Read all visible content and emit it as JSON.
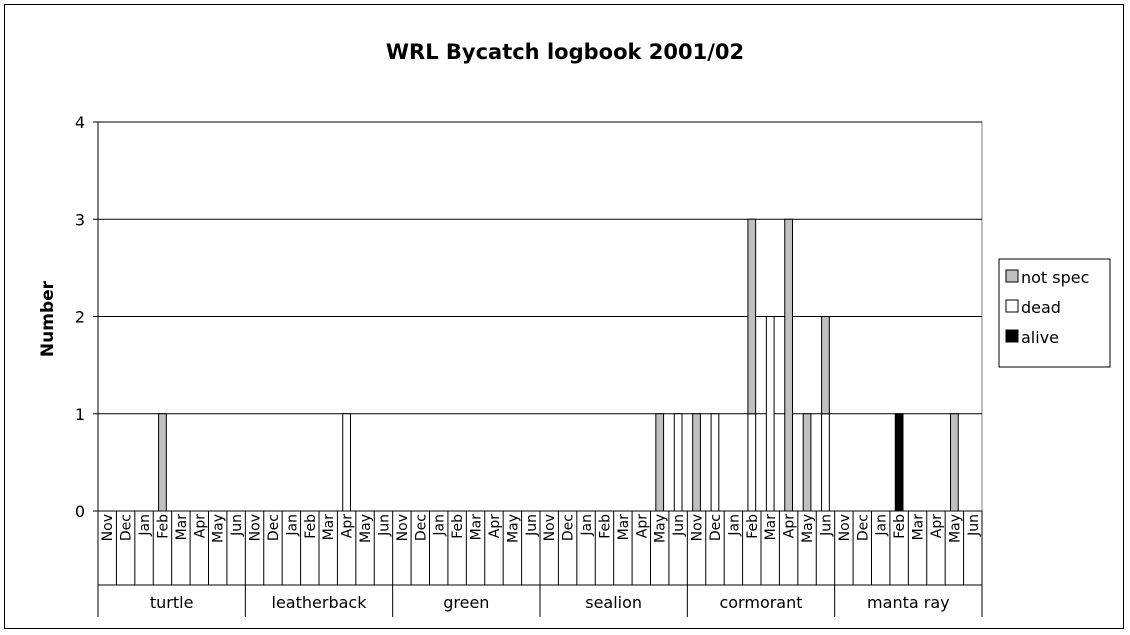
{
  "chart_data": {
    "type": "bar",
    "stacked": true,
    "title": "WRL Bycatch logbook 2001/02",
    "ylabel": "Number",
    "xlabel": "",
    "ylim": [
      0,
      4
    ],
    "yticks": [
      0,
      1,
      2,
      3,
      4
    ],
    "grid": true,
    "legend_position": "right",
    "months": [
      "Nov",
      "Dec",
      "Jan",
      "Feb",
      "Mar",
      "Apr",
      "May",
      "Jun"
    ],
    "groups": [
      "turtle",
      "leatherback",
      "green",
      "sealion",
      "cormorant",
      "manta ray"
    ],
    "legend": [
      "not spec",
      "dead",
      "alive"
    ],
    "series": [
      {
        "name": "alive",
        "color": "#000000",
        "values": [
          [
            0,
            0,
            0,
            0,
            0,
            0,
            0,
            0
          ],
          [
            0,
            0,
            0,
            0,
            0,
            0,
            0,
            0
          ],
          [
            0,
            0,
            0,
            0,
            0,
            0,
            0,
            0
          ],
          [
            0,
            0,
            0,
            0,
            0,
            0,
            0,
            0
          ],
          [
            0,
            0,
            0,
            0,
            0,
            0,
            0,
            0
          ],
          [
            0,
            0,
            0,
            1,
            0,
            0,
            0,
            0
          ]
        ]
      },
      {
        "name": "dead",
        "color": "#ffffff",
        "values": [
          [
            0,
            0,
            0,
            0,
            0,
            0,
            0,
            0
          ],
          [
            0,
            0,
            0,
            0,
            0,
            1,
            0,
            0
          ],
          [
            0,
            0,
            0,
            0,
            0,
            0,
            0,
            0
          ],
          [
            0,
            0,
            0,
            0,
            0,
            0,
            0,
            1
          ],
          [
            0,
            1,
            0,
            1,
            2,
            0,
            0,
            1
          ],
          [
            0,
            0,
            0,
            0,
            0,
            0,
            0,
            0
          ]
        ]
      },
      {
        "name": "not spec",
        "color": "#c0c0c0",
        "values": [
          [
            0,
            0,
            0,
            1,
            0,
            0,
            0,
            0
          ],
          [
            0,
            0,
            0,
            0,
            0,
            0,
            0,
            0
          ],
          [
            0,
            0,
            0,
            0,
            0,
            0,
            0,
            0
          ],
          [
            0,
            0,
            0,
            0,
            0,
            0,
            1,
            0
          ],
          [
            1,
            0,
            0,
            2,
            0,
            3,
            1,
            1
          ],
          [
            0,
            0,
            0,
            0,
            0,
            0,
            1,
            0
          ]
        ]
      }
    ]
  }
}
